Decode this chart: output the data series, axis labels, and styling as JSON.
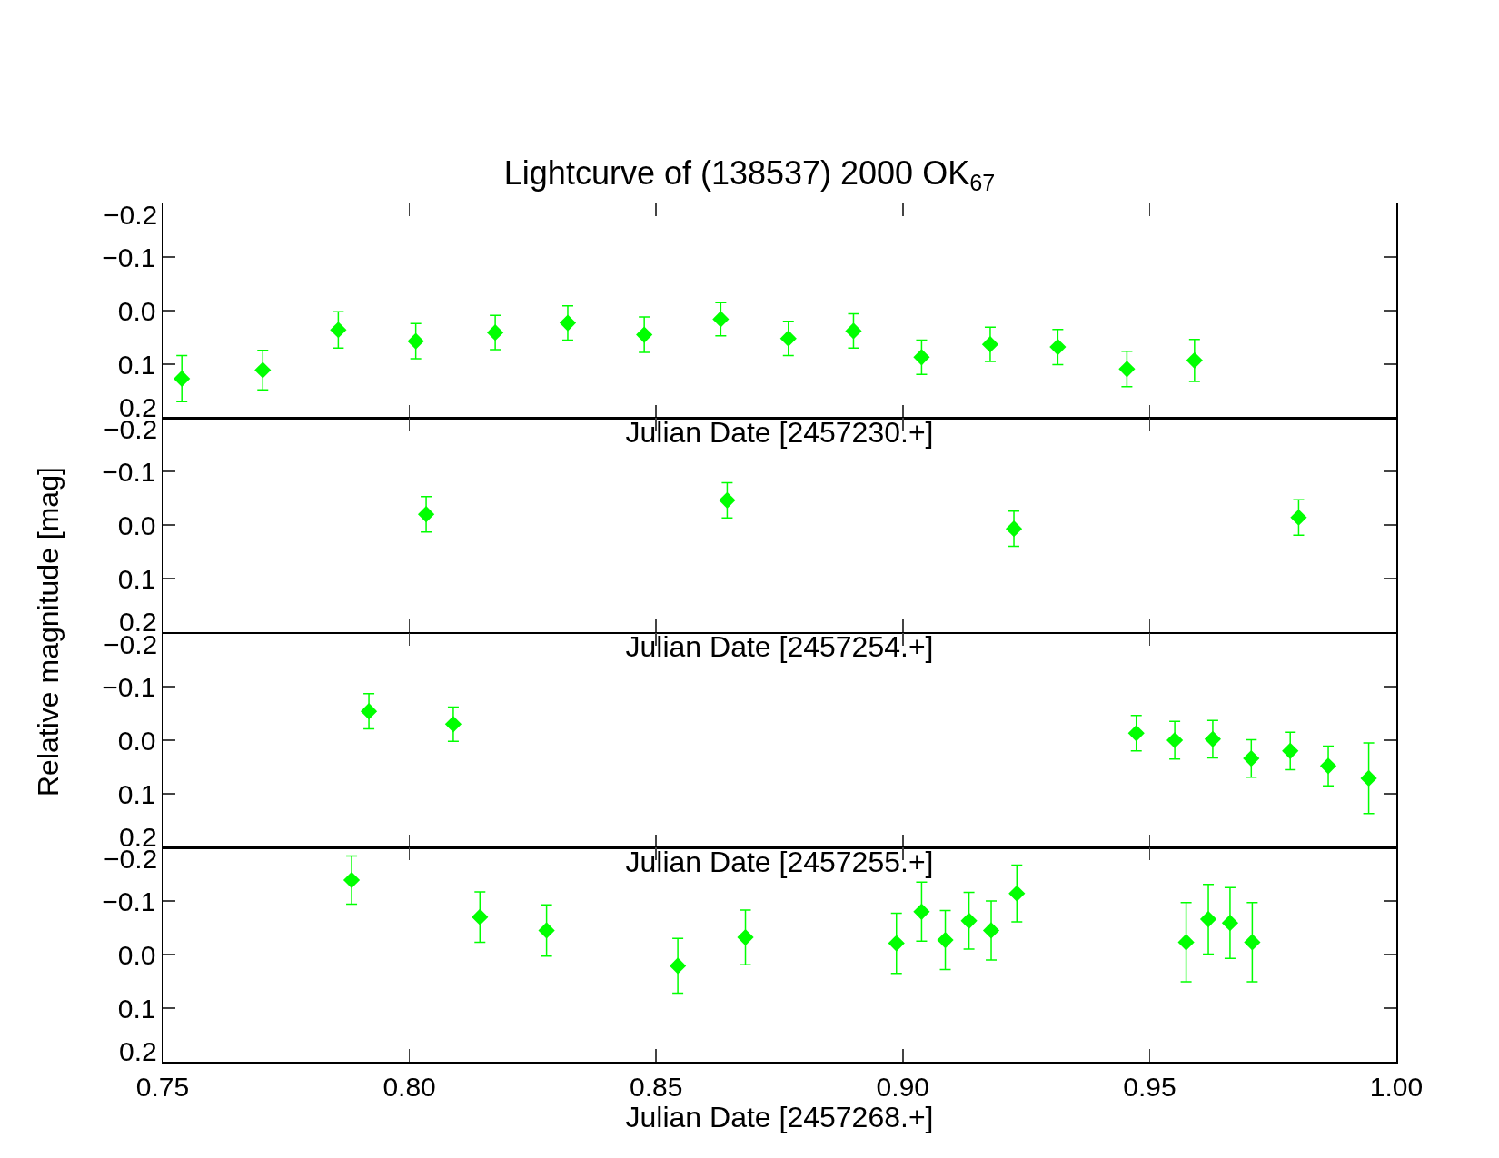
{
  "chart_data": [
    {
      "type": "scatter",
      "title": "Lightcurve of (138537) 2000 OK$_{67}$",
      "xlabel": "Julian Date [2457230.+]",
      "ylabel": "Relative magnitude [mag]",
      "marker": "diamond",
      "grid": false,
      "tick_labels": "y",
      "x": [
        0.7539,
        0.7703,
        0.7856,
        0.8013,
        0.8174,
        0.8321,
        0.8476,
        0.8631,
        0.8768,
        0.89,
        0.9038,
        0.9177,
        0.9314,
        0.9454,
        0.9591
      ],
      "series": [
        {
          "color": "#00ff00",
          "values": [
            0.127,
            0.111,
            0.036,
            0.057,
            0.041,
            0.023,
            0.045,
            0.016,
            0.052,
            0.038,
            0.087,
            0.063,
            0.068,
            0.109,
            0.093
          ],
          "errors": [
            0.043,
            0.037,
            0.034,
            0.033,
            0.032,
            0.032,
            0.033,
            0.031,
            0.032,
            0.032,
            0.032,
            0.032,
            0.033,
            0.033,
            0.039
          ]
        }
      ],
      "xlim": [
        0.75,
        1.0
      ],
      "xticks": [
        {
          "value": 0.75,
          "label": null
        },
        {
          "value": 0.8,
          "label": null
        },
        {
          "value": 0.85,
          "label": null
        },
        {
          "value": 0.9,
          "label": null
        },
        {
          "value": 0.95,
          "label": null
        },
        {
          "value": 1.0,
          "label": null
        }
      ],
      "ylim": [
        0.2,
        -0.2
      ],
      "yticks": [
        {
          "value": -0.2,
          "label": "−0.2"
        },
        {
          "value": -0.1,
          "label": "−0.1"
        },
        {
          "value": 0,
          "label": "0.0"
        },
        {
          "value": 0.1,
          "label": "0.1"
        },
        {
          "value": 0.2,
          "label": "0.2"
        }
      ]
    },
    {
      "type": "scatter",
      "xlabel": "Julian Date [2457254.+]",
      "marker": "diamond",
      "grid": false,
      "tick_labels": "y",
      "x": [
        0.8034,
        0.8644,
        0.9225,
        0.9802
      ],
      "series": [
        {
          "color": "#00ff00",
          "values": [
            -0.02,
            -0.046,
            0.007,
            -0.014
          ],
          "errors": [
            0.033,
            0.033,
            0.033,
            0.033
          ]
        }
      ],
      "xlim": [
        0.75,
        1.0
      ],
      "xticks": [
        {
          "value": 0.75,
          "label": null
        },
        {
          "value": 0.8,
          "label": null
        },
        {
          "value": 0.85,
          "label": null
        },
        {
          "value": 0.9,
          "label": null
        },
        {
          "value": 0.95,
          "label": null
        },
        {
          "value": 1.0,
          "label": null
        }
      ],
      "ylim": [
        0.2,
        -0.2
      ],
      "yticks": [
        {
          "value": -0.2,
          "label": "−0.2"
        },
        {
          "value": -0.1,
          "label": "−0.1"
        },
        {
          "value": 0,
          "label": "0.0"
        },
        {
          "value": 0.1,
          "label": "0.1"
        },
        {
          "value": 0.2,
          "label": "0.2"
        }
      ]
    },
    {
      "type": "scatter",
      "xlabel": "Julian Date [2457255.+]",
      "marker": "diamond",
      "grid": false,
      "tick_labels": "y",
      "x": [
        0.7918,
        0.8089,
        0.9473,
        0.9551,
        0.9628,
        0.9706,
        0.9785,
        0.9862,
        0.9944
      ],
      "series": [
        {
          "color": "#00ff00",
          "values": [
            -0.054,
            -0.03,
            -0.013,
            0.0,
            -0.002,
            0.034,
            0.02,
            0.048,
            0.071
          ],
          "errors": [
            0.033,
            0.032,
            0.033,
            0.035,
            0.035,
            0.035,
            0.035,
            0.037,
            0.066
          ]
        }
      ],
      "xlim": [
        0.75,
        1.0
      ],
      "xticks": [
        {
          "value": 0.75,
          "label": null
        },
        {
          "value": 0.8,
          "label": null
        },
        {
          "value": 0.85,
          "label": null
        },
        {
          "value": 0.9,
          "label": null
        },
        {
          "value": 0.95,
          "label": null
        },
        {
          "value": 1.0,
          "label": null
        }
      ],
      "ylim": [
        0.2,
        -0.2
      ],
      "yticks": [
        {
          "value": -0.2,
          "label": "−0.2"
        },
        {
          "value": -0.1,
          "label": "−0.1"
        },
        {
          "value": 0,
          "label": "0.0"
        },
        {
          "value": 0.1,
          "label": "0.1"
        },
        {
          "value": 0.2,
          "label": "0.2"
        }
      ]
    },
    {
      "type": "scatter",
      "xlabel": "Julian Date [2457268.+]",
      "marker": "diamond",
      "grid": false,
      "x": [
        0.7883,
        0.8143,
        0.8278,
        0.8544,
        0.8681,
        0.8987,
        0.9038,
        0.9086,
        0.9134,
        0.9179,
        0.9231,
        0.9574,
        0.9619,
        0.9663,
        0.9708
      ],
      "series": [
        {
          "color": "#00ff00",
          "values": [
            -0.139,
            -0.07,
            -0.045,
            0.021,
            -0.032,
            -0.021,
            -0.08,
            -0.027,
            -0.063,
            -0.045,
            -0.114,
            -0.023,
            -0.066,
            -0.059,
            -0.023
          ],
          "errors": [
            0.045,
            0.047,
            0.048,
            0.051,
            0.051,
            0.056,
            0.055,
            0.055,
            0.053,
            0.055,
            0.053,
            0.074,
            0.065,
            0.066,
            0.074
          ]
        }
      ],
      "xlim": [
        0.75,
        1.0
      ],
      "xticks": [
        0.75,
        {
          "value": 0.8,
          "label": "0.80"
        },
        0.85,
        {
          "value": 0.9,
          "label": "0.90"
        },
        0.95,
        {
          "value": 1.0,
          "label": "1.00"
        }
      ],
      "ylim": [
        0.2,
        -0.2
      ],
      "yticks": [
        {
          "value": -0.2,
          "label": "−0.2"
        },
        {
          "value": -0.1,
          "label": "−0.1"
        },
        {
          "value": 0,
          "label": "0.0"
        },
        {
          "value": 0.1,
          "label": "0.1"
        },
        {
          "value": 0.2,
          "label": "0.2"
        }
      ]
    }
  ]
}
